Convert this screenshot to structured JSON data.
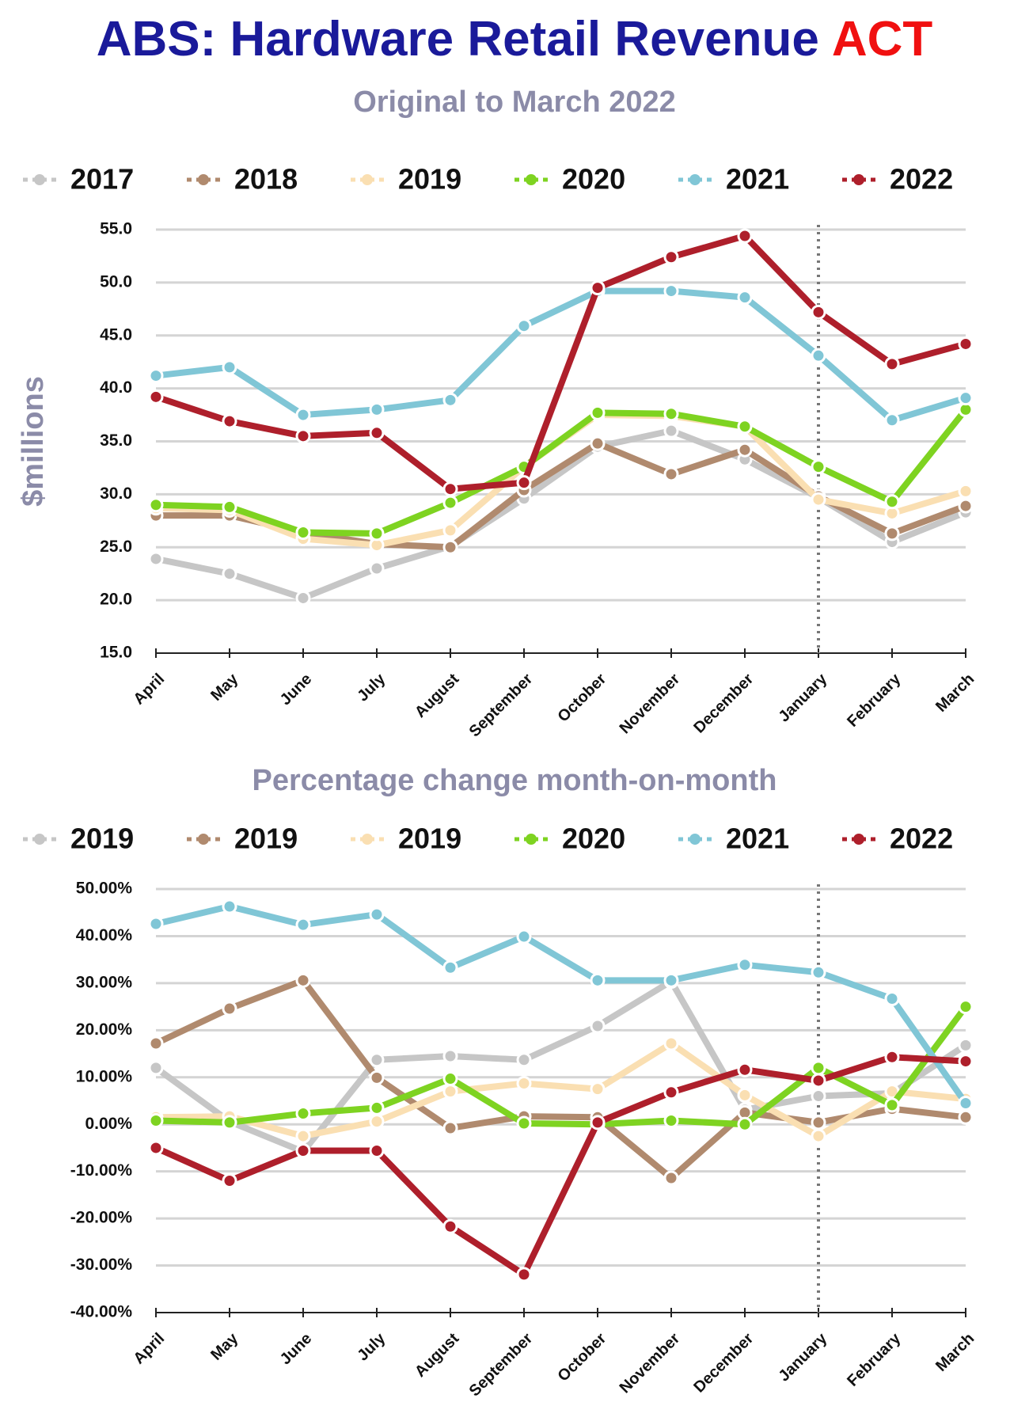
{
  "title": {
    "text": "ABS: Hardware Retail Revenue",
    "highlight": "ACT"
  },
  "chart_data": [
    {
      "type": "line",
      "subtitle": "Original to March 2022",
      "ylabel": "$millions",
      "categories": [
        "April",
        "May",
        "June",
        "July",
        "August",
        "September",
        "October",
        "November",
        "December",
        "January",
        "February",
        "March"
      ],
      "series": [
        {
          "name": "2017",
          "color": "#c6c6c6",
          "values": [
            23.9,
            22.5,
            20.2,
            23.0,
            25.1,
            29.6,
            34.5,
            36.0,
            33.3,
            29.7,
            25.5,
            28.3
          ]
        },
        {
          "name": "2018",
          "color": "#b08a6e",
          "values": [
            28.0,
            28.0,
            26.4,
            25.3,
            25.0,
            30.4,
            34.8,
            31.9,
            34.2,
            29.8,
            26.3,
            28.9
          ]
        },
        {
          "name": "2019",
          "color": "#fadfb2",
          "values": [
            28.7,
            28.5,
            25.8,
            25.2,
            26.6,
            32.6,
            37.5,
            37.4,
            36.4,
            29.5,
            28.2,
            30.3
          ]
        },
        {
          "name": "2020",
          "color": "#7ed321",
          "values": [
            29.0,
            28.8,
            26.4,
            26.3,
            29.2,
            32.6,
            37.7,
            37.6,
            36.4,
            32.6,
            29.3,
            38.0
          ]
        },
        {
          "name": "2021",
          "color": "#80c6d6",
          "values": [
            41.2,
            42.0,
            37.5,
            38.0,
            38.9,
            45.9,
            49.2,
            49.2,
            48.6,
            43.1,
            37.0,
            39.1
          ]
        },
        {
          "name": "2022",
          "color": "#ae1f2b",
          "values": [
            39.2,
            36.9,
            35.5,
            35.8,
            30.5,
            31.1,
            49.5,
            52.4,
            54.4,
            47.2,
            42.3,
            44.2
          ]
        }
      ],
      "ylim": [
        15,
        55
      ],
      "yticks": [
        {
          "value": 15,
          "label": "15.0"
        },
        {
          "value": 20,
          "label": "20.0"
        },
        {
          "value": 25,
          "label": "25.0"
        },
        {
          "value": 30,
          "label": "30.0"
        },
        {
          "value": 35,
          "label": "35.0"
        },
        {
          "value": 40,
          "label": "40.0"
        },
        {
          "value": 45,
          "label": "45.0"
        },
        {
          "value": 50,
          "label": "50.0"
        },
        {
          "value": 55,
          "label": "55.0"
        }
      ],
      "grid": true,
      "vline": "January"
    },
    {
      "type": "line",
      "subtitle": "Percentage change month-on-month",
      "categories": [
        "April",
        "May",
        "June",
        "July",
        "August",
        "September",
        "October",
        "November",
        "December",
        "January",
        "February",
        "March"
      ],
      "series": [
        {
          "name": "2019",
          "color": "#c6c6c6",
          "values": [
            12.0,
            0.6,
            -5.8,
            13.7,
            14.5,
            13.7,
            20.9,
            30.4,
            3.1,
            6.0,
            6.6,
            16.8
          ]
        },
        {
          "name": "2019",
          "color": "#b08a6e",
          "values": [
            17.2,
            24.6,
            30.6,
            9.9,
            -0.8,
            1.7,
            1.5,
            -11.4,
            2.5,
            0.4,
            3.3,
            1.5
          ]
        },
        {
          "name": "2019",
          "color": "#fadfb2",
          "values": [
            1.5,
            1.7,
            -2.5,
            0.6,
            7.0,
            8.7,
            7.5,
            17.2,
            6.2,
            -2.5,
            7.0,
            5.4
          ]
        },
        {
          "name": "2020",
          "color": "#7ed321",
          "values": [
            0.8,
            0.4,
            2.3,
            3.5,
            9.7,
            0.2,
            0.0,
            0.8,
            0.0,
            12.0,
            4.1,
            25.0
          ]
        },
        {
          "name": "2021",
          "color": "#80c6d6",
          "values": [
            42.6,
            46.3,
            42.4,
            44.6,
            33.3,
            39.9,
            30.6,
            30.6,
            33.9,
            32.3,
            26.7,
            4.5
          ]
        },
        {
          "name": "2022",
          "color": "#ae1f2b",
          "values": [
            -5.0,
            -12.0,
            -5.6,
            -5.6,
            -21.7,
            -31.9,
            0.4,
            6.8,
            11.6,
            9.3,
            14.3,
            13.4
          ]
        }
      ],
      "ylim": [
        -40,
        50
      ],
      "yticks": [
        {
          "value": -40,
          "label": "-40.00%"
        },
        {
          "value": -30,
          "label": "-30.00%"
        },
        {
          "value": -20,
          "label": "-20.00%"
        },
        {
          "value": -10,
          "label": "-10.00%"
        },
        {
          "value": 0,
          "label": "0.00%"
        },
        {
          "value": 10,
          "label": "10.00%"
        },
        {
          "value": 20,
          "label": "20.00%"
        },
        {
          "value": 30,
          "label": "30.00%"
        },
        {
          "value": 40,
          "label": "40.00%"
        },
        {
          "value": 50,
          "label": "50.00%"
        }
      ],
      "grid": true,
      "vline": "January"
    }
  ]
}
